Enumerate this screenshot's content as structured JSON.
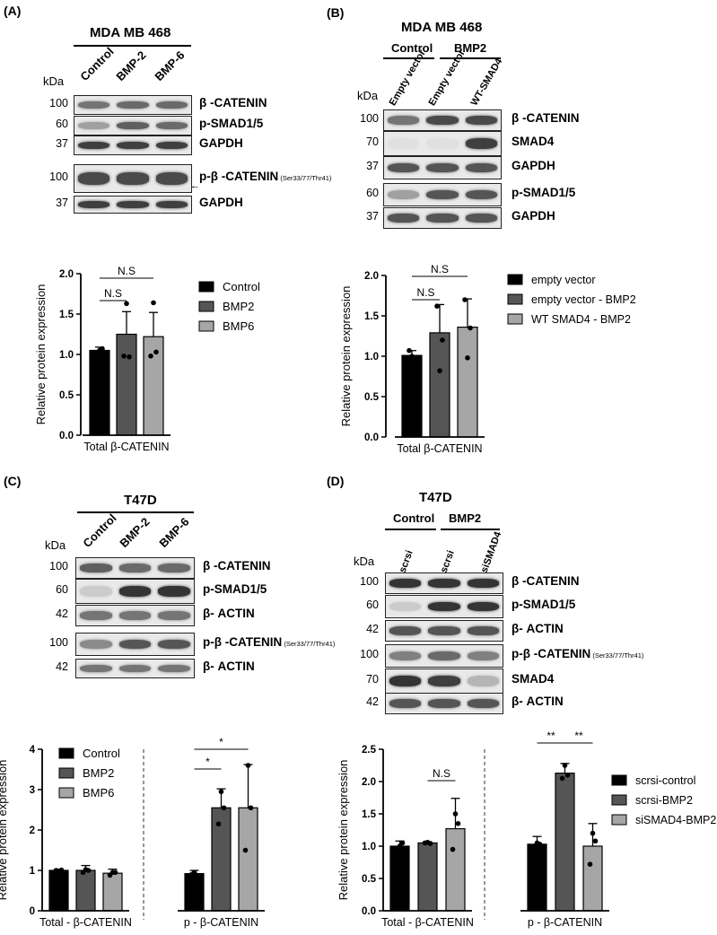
{
  "panels": {
    "A": {
      "label": "(A)",
      "cell_line": "MDA MB 468",
      "kda": "kDa",
      "lanes": [
        "Control",
        "BMP-2",
        "BMP-6"
      ],
      "rows": [
        {
          "mw": "100",
          "protein": "β -CATENIN",
          "sub": "",
          "intensity": [
            0.55,
            0.6,
            0.6
          ]
        },
        {
          "mw": "60",
          "protein": "p-SMAD1/5",
          "sub": "",
          "intensity": [
            0.35,
            0.65,
            0.6
          ]
        },
        {
          "mw": "37",
          "protein": "GAPDH",
          "sub": "",
          "intensity": [
            0.8,
            0.8,
            0.8
          ]
        },
        {
          "mw": "100",
          "protein": "p-β -CATENIN",
          "sub": "(Ser33/77/Thr41)",
          "intensity": [
            0.75,
            0.75,
            0.75
          ]
        },
        {
          "mw": "37",
          "protein": "GAPDH",
          "sub": "",
          "intensity": [
            0.8,
            0.8,
            0.8
          ]
        }
      ]
    },
    "B": {
      "label": "(B)",
      "cell_line": "MDA MB 468",
      "groups": [
        "Control",
        "BMP2"
      ],
      "kda": "kDa",
      "lanes": [
        "Empty vector",
        "Empty vector",
        "WT-SMAD4"
      ],
      "rows": [
        {
          "mw": "100",
          "protein": "β -CATENIN",
          "intensity": [
            0.55,
            0.75,
            0.75
          ]
        },
        {
          "mw": "70",
          "protein": "SMAD4",
          "intensity": [
            0.05,
            0.05,
            0.8
          ]
        },
        {
          "mw": "37",
          "protein": "GAPDH",
          "intensity": [
            0.7,
            0.7,
            0.7
          ]
        },
        {
          "mw": "60",
          "protein": "p-SMAD1/5",
          "intensity": [
            0.35,
            0.7,
            0.7
          ]
        },
        {
          "mw": "37",
          "protein": "GAPDH",
          "intensity": [
            0.7,
            0.7,
            0.7
          ]
        }
      ]
    },
    "C": {
      "label": "(C)",
      "cell_line": "T47D",
      "kda": "kDa",
      "lanes": [
        "Control",
        "BMP-2",
        "BMP-6"
      ],
      "rows": [
        {
          "mw": "100",
          "protein": "β -CATENIN",
          "sub": "",
          "intensity": [
            0.65,
            0.6,
            0.6
          ]
        },
        {
          "mw": "60",
          "protein": "p-SMAD1/5",
          "sub": "",
          "intensity": [
            0.15,
            0.85,
            0.85
          ]
        },
        {
          "mw": "42",
          "protein": "β- ACTIN",
          "sub": "",
          "intensity": [
            0.55,
            0.55,
            0.55
          ]
        },
        {
          "mw": "100",
          "protein": "p-β -CATENIN",
          "sub": "(Ser33/77/Thr41)",
          "intensity": [
            0.45,
            0.7,
            0.7
          ]
        },
        {
          "mw": "42",
          "protein": "β- ACTIN",
          "sub": "",
          "intensity": [
            0.55,
            0.55,
            0.55
          ]
        }
      ]
    },
    "D": {
      "label": "(D)",
      "cell_line": "T47D",
      "groups": [
        "Control",
        "BMP2"
      ],
      "kda": "kDa",
      "lanes": [
        "scrsi",
        "scrsi",
        "siSMAD4"
      ],
      "rows": [
        {
          "mw": "100",
          "protein": "β -CATENIN",
          "sub": "",
          "intensity": [
            0.85,
            0.85,
            0.85
          ]
        },
        {
          "mw": "60",
          "protein": "p-SMAD1/5",
          "sub": "",
          "intensity": [
            0.15,
            0.85,
            0.85
          ]
        },
        {
          "mw": "42",
          "protein": "β- ACTIN",
          "sub": "",
          "intensity": [
            0.7,
            0.7,
            0.7
          ]
        },
        {
          "mw": "100",
          "protein": "p-β -CATENIN",
          "sub": "(Ser33/77/Thr41)",
          "intensity": [
            0.5,
            0.6,
            0.5
          ]
        },
        {
          "mw": "70",
          "protein": "SMAD4",
          "sub": "",
          "intensity": [
            0.85,
            0.8,
            0.25
          ]
        },
        {
          "mw": "42",
          "protein": "β- ACTIN",
          "sub": "",
          "intensity": [
            0.7,
            0.7,
            0.7
          ]
        }
      ]
    }
  },
  "chart_data": [
    {
      "type": "bar",
      "panel": "A",
      "categories": [
        "Total β-CATENIN"
      ],
      "series": [
        {
          "name": "Control",
          "values": [
            1.05
          ],
          "err": [
            0.04
          ],
          "color": "#000000",
          "points": [
            1.0,
            1.05,
            1.07
          ]
        },
        {
          "name": "BMP2",
          "values": [
            1.25
          ],
          "err": [
            0.28
          ],
          "color": "#555555",
          "points": [
            0.98,
            1.63,
            0.97
          ]
        },
        {
          "name": "BMP6",
          "values": [
            1.22
          ],
          "err": [
            0.3
          ],
          "color": "#a6a6a6",
          "points": [
            0.98,
            1.64,
            1.03
          ]
        }
      ],
      "ylabel": "Relative protein expression",
      "ylim": [
        0,
        2.0
      ],
      "yticks": [
        "0.0",
        "0.5",
        "1.0",
        "1.5",
        "2.0"
      ],
      "annotations": [
        "N.S",
        "N.S"
      ],
      "legend": "right"
    },
    {
      "type": "bar",
      "panel": "B",
      "categories": [
        "Total β-CATENIN"
      ],
      "series": [
        {
          "name": "empty vector",
          "values": [
            1.01
          ],
          "err": [
            0.06
          ],
          "color": "#000000",
          "points": [
            1.07,
            1.0,
            0.97
          ]
        },
        {
          "name": "empty vector - BMP2",
          "values": [
            1.29
          ],
          "err": [
            0.35
          ],
          "color": "#555555",
          "points": [
            1.62,
            0.82,
            1.2
          ]
        },
        {
          "name": "WT SMAD4 - BMP2",
          "values": [
            1.36
          ],
          "err": [
            0.35
          ],
          "color": "#a6a6a6",
          "points": [
            1.7,
            0.98,
            1.35
          ]
        }
      ],
      "ylabel": "Relative protein expression",
      "ylim": [
        0,
        2.0
      ],
      "yticks": [
        "0.0",
        "0.5",
        "1.0",
        "1.5",
        "2.0"
      ],
      "annotations": [
        "N.S",
        "N.S"
      ],
      "legend": "right"
    },
    {
      "type": "bar",
      "panel": "C",
      "categories": [
        "Total - β-CATENIN",
        "p - β-CATENIN"
      ],
      "series": [
        {
          "name": "Control",
          "values": [
            1.0,
            0.92
          ],
          "err": [
            0.03,
            0.08
          ],
          "color": "#000000",
          "points": [
            [
              1.0,
              0.98,
              1.01
            ],
            [
              0.9,
              0.95,
              0.88
            ]
          ]
        },
        {
          "name": "BMP2",
          "values": [
            1.0,
            2.55
          ],
          "err": [
            0.12,
            0.47
          ],
          "color": "#555555",
          "points": [
            [
              0.95,
              1.02,
              1.0
            ],
            [
              2.15,
              2.95,
              2.55
            ]
          ]
        },
        {
          "name": "BMP6",
          "values": [
            0.93,
            2.55
          ],
          "err": [
            0.1,
            1.07
          ],
          "color": "#a6a6a6",
          "points": [
            [
              0.88,
              0.95,
              0.95
            ],
            [
              1.5,
              3.6,
              2.55
            ]
          ]
        }
      ],
      "ylabel": "Relative protein expression",
      "ylim": [
        0,
        4
      ],
      "yticks": [
        "0",
        "1",
        "2",
        "3",
        "4"
      ],
      "annotations": [
        "*",
        "*"
      ],
      "legend": "top-left"
    },
    {
      "type": "bar",
      "panel": "D",
      "categories": [
        "Total - β-CATENIN",
        "p - β-CATENIN"
      ],
      "series": [
        {
          "name": "scrsi-control",
          "values": [
            1.0,
            1.03
          ],
          "err": [
            0.08,
            0.12
          ],
          "color": "#000000",
          "points": [
            [
              0.95,
              1.0,
              1.05
            ],
            [
              1.0,
              1.05,
              1.03
            ]
          ]
        },
        {
          "name": "scrsi-BMP2",
          "values": [
            1.05,
            2.13
          ],
          "err": [
            0.02,
            0.15
          ],
          "color": "#555555",
          "points": [
            [
              1.05,
              1.06,
              1.04
            ],
            [
              2.05,
              2.25,
              2.1
            ]
          ]
        },
        {
          "name": "siSMAD4-BMP2",
          "values": [
            1.27,
            1.0
          ],
          "err": [
            0.47,
            0.35
          ],
          "color": "#a6a6a6",
          "points": [
            [
              0.95,
              1.5,
              1.35
            ],
            [
              0.72,
              1.2,
              1.08
            ]
          ]
        }
      ],
      "ylabel": "Relative protein expression",
      "ylim": [
        0,
        2.5
      ],
      "yticks": [
        "0.0",
        "0.5",
        "1.0",
        "1.5",
        "2.0",
        "2.5"
      ],
      "annotations": [
        "N.S",
        "**",
        "**"
      ],
      "legend": "right"
    }
  ]
}
